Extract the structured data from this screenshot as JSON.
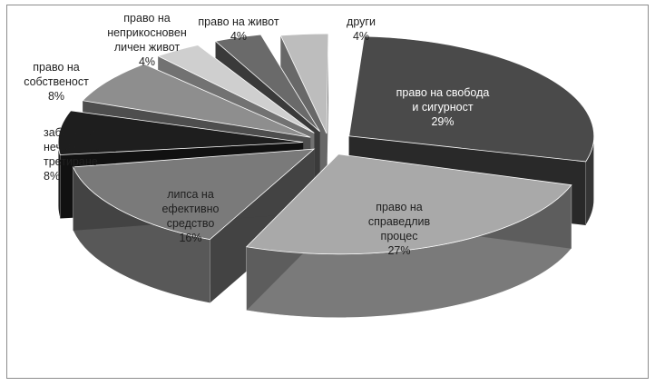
{
  "chart_data": {
    "type": "pie",
    "style": "3d-exploded",
    "title": "",
    "legend": "none",
    "slices": [
      {
        "label_lines": [
          "право на свобода",
          "и сигурност"
        ],
        "value": 29,
        "value_label": "29%",
        "color": "#4a4a4a"
      },
      {
        "label_lines": [
          "право на",
          "справедлив",
          "процес"
        ],
        "value": 27,
        "value_label": "27%",
        "color": "#a9a9a9"
      },
      {
        "label_lines": [
          "липса на",
          "ефективно",
          "средство"
        ],
        "value": 16,
        "value_label": "16%",
        "color": "#7a7a7a"
      },
      {
        "label_lines": [
          "забрана за",
          "нечовешко",
          "третиране"
        ],
        "value": 8,
        "value_label": "8%",
        "color": "#1e1e1e"
      },
      {
        "label_lines": [
          "право на",
          "собственост"
        ],
        "value": 8,
        "value_label": "8%",
        "color": "#8e8e8e"
      },
      {
        "label_lines": [
          "право на",
          "неприкосновен",
          "личен живот"
        ],
        "value": 4,
        "value_label": "4%",
        "color": "#cfcfcf"
      },
      {
        "label_lines": [
          "право на живот"
        ],
        "value": 4,
        "value_label": "4%",
        "color": "#6a6a6a"
      },
      {
        "label_lines": [
          "други"
        ],
        "value": 4,
        "value_label": "4%",
        "color": "#bdbdbd"
      }
    ]
  }
}
